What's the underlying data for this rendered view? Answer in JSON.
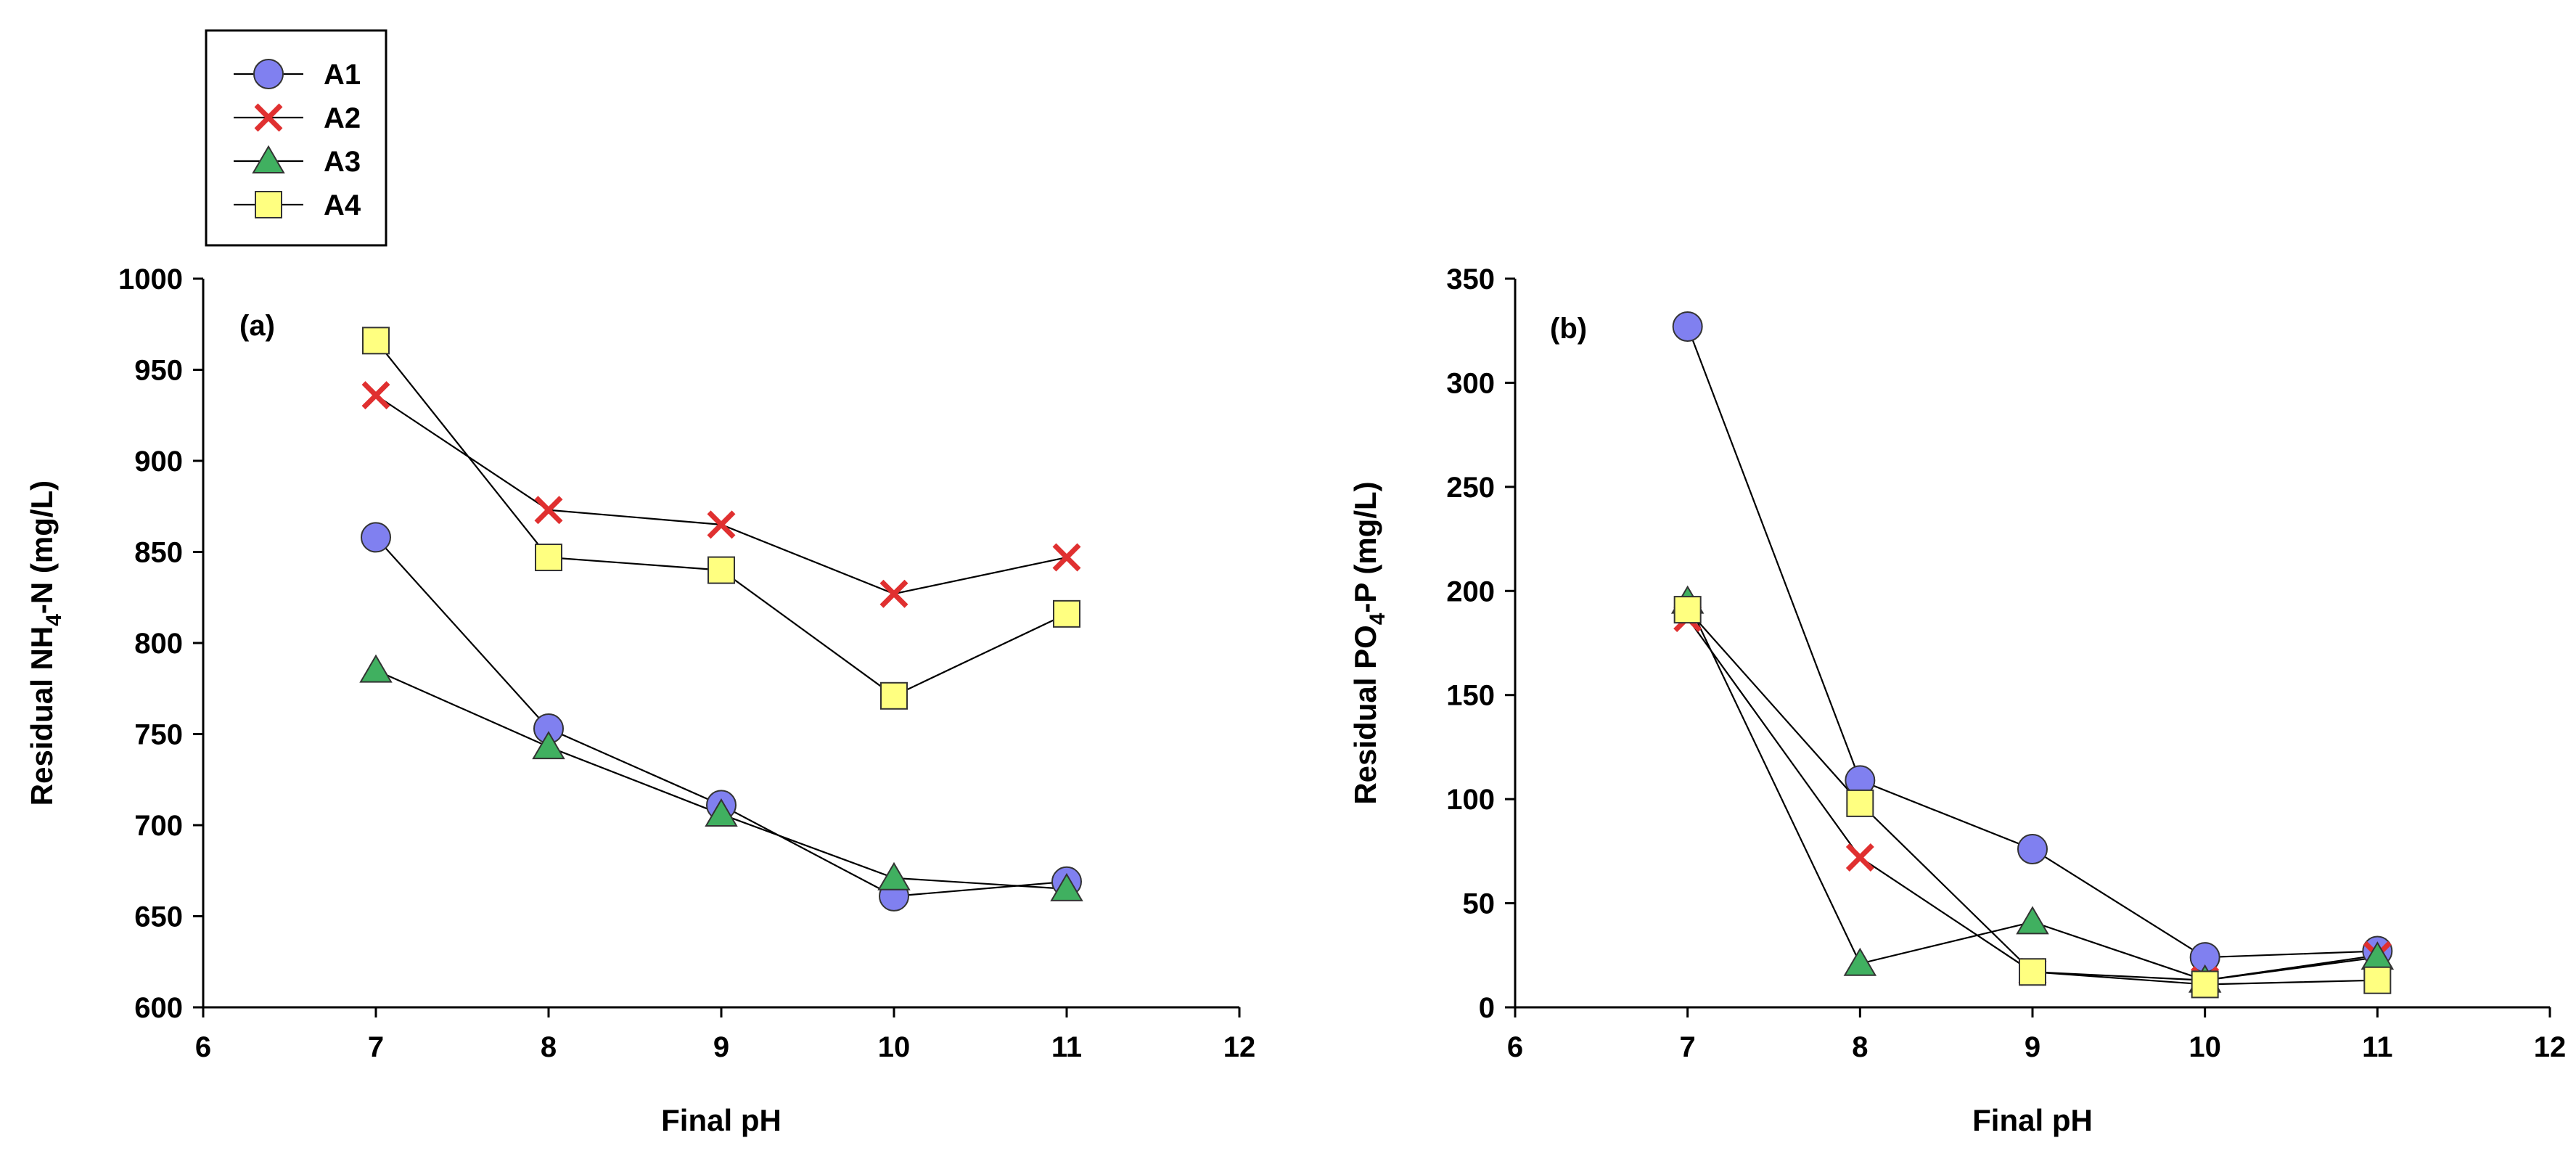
{
  "legend": {
    "entries": [
      {
        "label": "A1",
        "marker": "circle",
        "fill": "#8080f0"
      },
      {
        "label": "A2",
        "marker": "x",
        "fill": "#e03030"
      },
      {
        "label": "A3",
        "marker": "triangle",
        "fill": "#40b060"
      },
      {
        "label": "A4",
        "marker": "square",
        "fill": "#ffff80"
      }
    ]
  },
  "chart_data": [
    {
      "type": "line",
      "panel_tag": "(a)",
      "xlabel": "Final pH",
      "ylabel_parts": {
        "pre": "Residual NH",
        "sub": "4",
        "post": "-N (mg/L)"
      },
      "xlim": [
        6,
        12
      ],
      "ylim": [
        600,
        1000
      ],
      "xticks": [
        6,
        7,
        8,
        9,
        10,
        11,
        12
      ],
      "yticks": [
        600,
        650,
        700,
        750,
        800,
        850,
        900,
        950,
        1000
      ],
      "x": [
        7,
        8,
        9,
        10,
        11
      ],
      "series": [
        {
          "name": "A1",
          "values": [
            858,
            753,
            711,
            661,
            669
          ]
        },
        {
          "name": "A2",
          "values": [
            936,
            873,
            865,
            827,
            847
          ]
        },
        {
          "name": "A3",
          "values": [
            785,
            743,
            706,
            671,
            665
          ]
        },
        {
          "name": "A4",
          "values": [
            966,
            847,
            840,
            771,
            816
          ]
        }
      ]
    },
    {
      "type": "line",
      "panel_tag": "(b)",
      "xlabel": "Final pH",
      "ylabel_parts": {
        "pre": "Residual PO",
        "sub": "4",
        "post": "-P (mg/L)"
      },
      "xlim": [
        6,
        12
      ],
      "ylim": [
        0,
        350
      ],
      "xticks": [
        6,
        7,
        8,
        9,
        10,
        11,
        12
      ],
      "yticks": [
        0,
        50,
        100,
        150,
        200,
        250,
        300,
        350
      ],
      "x": [
        7,
        8,
        9,
        10,
        11
      ],
      "series": [
        {
          "name": "A1",
          "values": [
            327,
            109,
            76,
            24,
            27
          ]
        },
        {
          "name": "A2",
          "values": [
            187,
            72,
            17,
            13,
            25
          ]
        },
        {
          "name": "A3",
          "values": [
            195,
            21,
            41,
            13,
            24
          ]
        },
        {
          "name": "A4",
          "values": [
            191,
            98,
            17,
            11,
            13
          ]
        }
      ]
    }
  ]
}
